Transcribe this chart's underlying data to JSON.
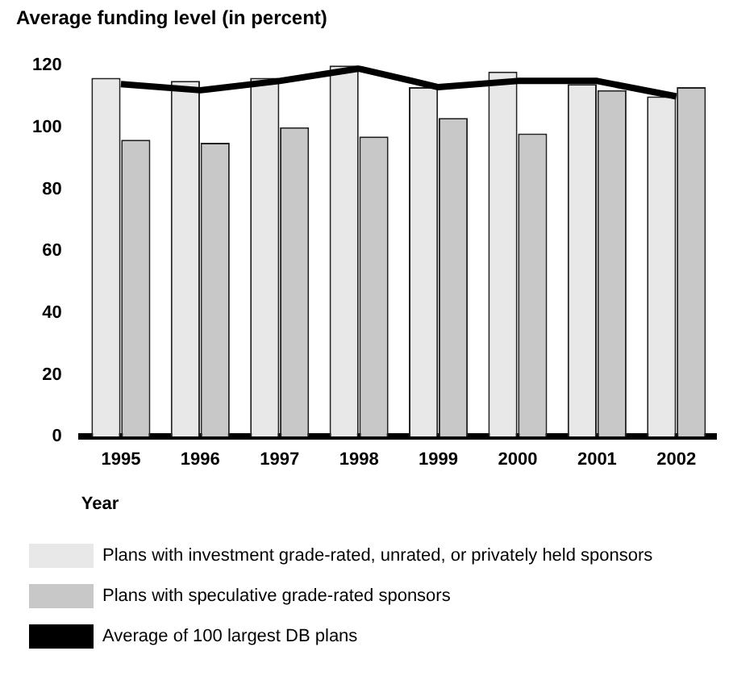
{
  "chart_data": {
    "type": "bar",
    "title": "Average funding level (in percent)",
    "xlabel": "Year",
    "categories": [
      "1995",
      "1996",
      "1997",
      "1998",
      "1999",
      "2000",
      "2001",
      "2002"
    ],
    "series": [
      {
        "name": "Plans with investment grade-rated, unrated, or privately held sponsors",
        "color": "#e8e8e8",
        "values": [
          116,
          115,
          116,
          120,
          113,
          118,
          114,
          110
        ]
      },
      {
        "name": "Plans with speculative grade-rated sponsors",
        "color": "#c8c8c8",
        "values": [
          96,
          95,
          100,
          97,
          103,
          98,
          112,
          113
        ]
      },
      {
        "name": "Average of 100 largest DB plans",
        "type": "line",
        "color": "#000000",
        "values": [
          114,
          112,
          115,
          119,
          113,
          115,
          115,
          110
        ]
      }
    ],
    "ylim": [
      0,
      120
    ],
    "yticks": [
      0,
      20,
      40,
      60,
      80,
      100,
      120
    ],
    "grid": false,
    "legend": "bottom",
    "marker": "none",
    "line_style": "solid"
  }
}
